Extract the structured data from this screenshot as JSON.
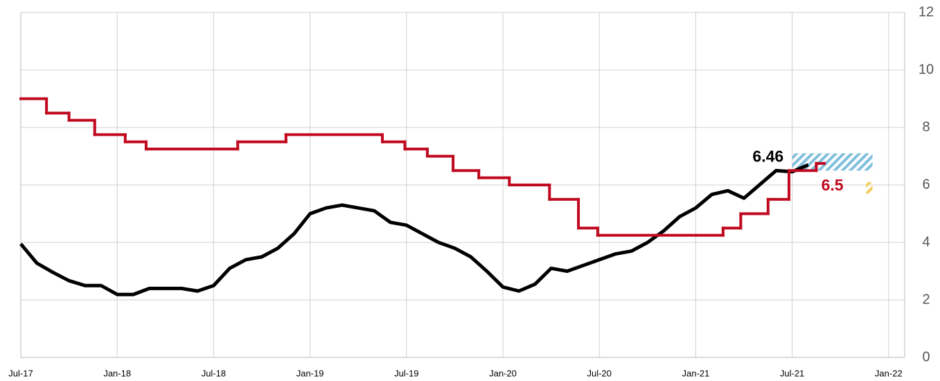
{
  "chart_data": {
    "type": "line",
    "xlim": [
      0,
      55
    ],
    "xticks": [
      {
        "value": 0,
        "label": "Jul-17"
      },
      {
        "value": 6,
        "label": "Jan-18"
      },
      {
        "value": 12,
        "label": "Jul-18"
      },
      {
        "value": 18,
        "label": "Jan-19"
      },
      {
        "value": 24,
        "label": "Jul-19"
      },
      {
        "value": 30,
        "label": "Jan-20"
      },
      {
        "value": 36,
        "label": "Jul-20"
      },
      {
        "value": 42,
        "label": "Jan-21"
      },
      {
        "value": 48,
        "label": "Jul-21"
      },
      {
        "value": 54,
        "label": "Jan-22"
      }
    ],
    "ylim": [
      0,
      12
    ],
    "yticks": [
      0,
      2,
      4,
      6,
      8,
      10,
      12
    ],
    "grid": true,
    "series": [
      {
        "color": "#000000",
        "step": false,
        "x": [
          0,
          1,
          2,
          3,
          4,
          5,
          6,
          7,
          8,
          9,
          10,
          11,
          12,
          13,
          14,
          15,
          16,
          17,
          18,
          19,
          20,
          21,
          22,
          23,
          24,
          25,
          26,
          27,
          28,
          29,
          30,
          31,
          32,
          33,
          34,
          35,
          36,
          37,
          38,
          39,
          40,
          41,
          42,
          43,
          44,
          45,
          46,
          47,
          48,
          49
        ],
        "values": [
          3.95,
          3.28,
          2.96,
          2.67,
          2.5,
          2.5,
          2.19,
          2.19,
          2.4,
          2.4,
          2.4,
          2.31,
          2.5,
          3.1,
          3.4,
          3.5,
          3.8,
          4.3,
          5.0,
          5.2,
          5.3,
          5.2,
          5.1,
          4.7,
          4.6,
          4.3,
          4.0,
          3.8,
          3.5,
          3.0,
          2.45,
          2.31,
          2.55,
          3.1,
          3.0,
          3.2,
          3.4,
          3.6,
          3.7,
          4.0,
          4.4,
          4.9,
          5.2,
          5.67,
          5.8,
          5.54,
          6.02,
          6.5,
          6.46,
          6.7
        ]
      },
      {
        "color": "#c0091f",
        "step": true,
        "x": [
          0,
          1.6,
          3,
          4.6,
          6.5,
          7.8,
          13.5,
          16.5,
          22.5,
          23.9,
          25.3,
          26.9,
          28.5,
          30.4,
          32.9,
          34.7,
          35.9,
          43.7,
          44.8,
          46.5,
          47.8,
          49.5,
          50
        ],
        "values": [
          9.0,
          8.5,
          8.25,
          7.75,
          7.5,
          7.25,
          7.5,
          7.75,
          7.5,
          7.25,
          7.0,
          6.5,
          6.25,
          6.0,
          5.5,
          4.5,
          4.25,
          4.5,
          5.0,
          5.5,
          6.5,
          6.75,
          6.75
        ]
      }
    ],
    "bands": [
      {
        "x": [
          48,
          53
        ],
        "y": [
          6.5,
          7.1
        ],
        "color": "#7fbfdc"
      },
      {
        "x": [
          52.6,
          53
        ],
        "y": [
          5.7,
          6.1
        ],
        "color": "#f2cc5a"
      }
    ],
    "annotations": [
      {
        "text": "6.46",
        "x": 46.5,
        "y": 6.95,
        "color": "#000000"
      },
      {
        "text": "6.5",
        "x": 50.5,
        "y": 5.95,
        "color": "#c0091f"
      }
    ]
  }
}
